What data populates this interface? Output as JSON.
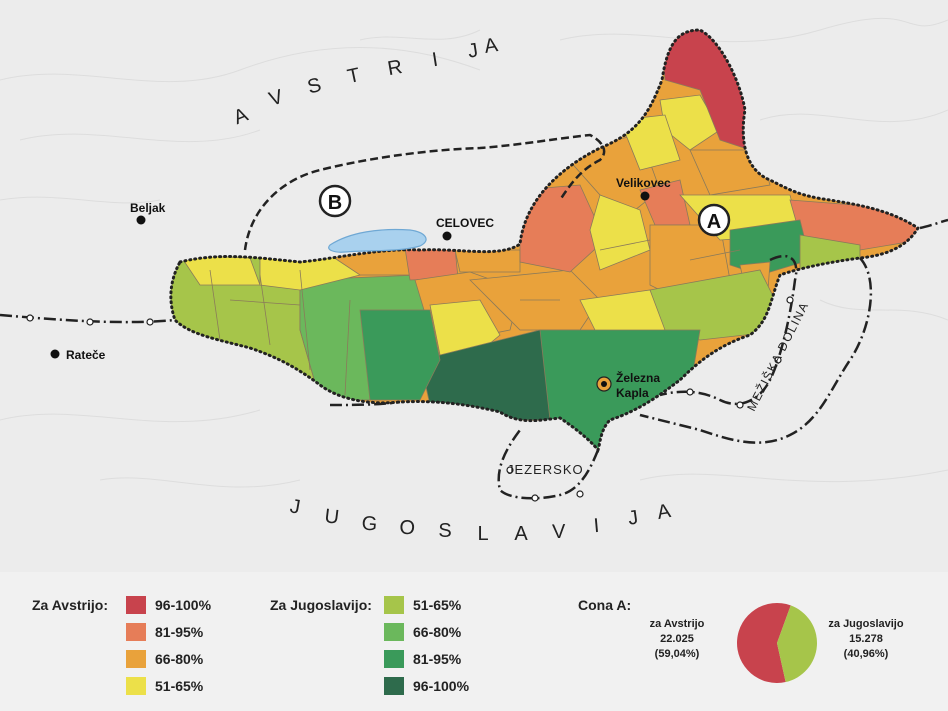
{
  "map": {
    "country_north": "AVSTRIJA",
    "country_south": "JUGOSLAVIJA",
    "towns": [
      {
        "name": "Beljak"
      },
      {
        "name": "Rateče"
      },
      {
        "name": "CELOVEC"
      },
      {
        "name": "Velikovec"
      },
      {
        "name": "Železna"
      },
      {
        "name": "Kapla"
      }
    ],
    "zone_a": "A",
    "zone_b": "B",
    "region_jezersko": "JEZERSKO",
    "region_mezisko": "MEŽIŠKA DOLINA"
  },
  "legend": {
    "austria": {
      "title": "Za Avstrijo:",
      "items": [
        {
          "label": "96-100%",
          "color": "#c8434d"
        },
        {
          "label": "81-95%",
          "color": "#e67d58"
        },
        {
          "label": "66-80%",
          "color": "#e9a23b"
        },
        {
          "label": "51-65%",
          "color": "#ece049"
        }
      ]
    },
    "yugoslavia": {
      "title": "Za Jugoslavijo:",
      "items": [
        {
          "label": "51-65%",
          "color": "#a6c54a"
        },
        {
          "label": "66-80%",
          "color": "#6bb85c"
        },
        {
          "label": "81-95%",
          "color": "#3a9a5a"
        },
        {
          "label": "96-100%",
          "color": "#2e6b4c"
        }
      ]
    },
    "zone_a": {
      "title": "Cona A:",
      "austria_label": "za Avstrijo",
      "austria_votes": "22.025",
      "austria_pct": "(59,04%)",
      "austria_share": 59.04,
      "austria_color": "#c8434d",
      "yugoslavia_label": "za Jugoslavijo",
      "yugoslavia_votes": "15.278",
      "yugoslavia_pct": "(40,96%)",
      "yugoslavia_share": 40.96,
      "yugoslavia_color": "#a6c54a"
    }
  }
}
